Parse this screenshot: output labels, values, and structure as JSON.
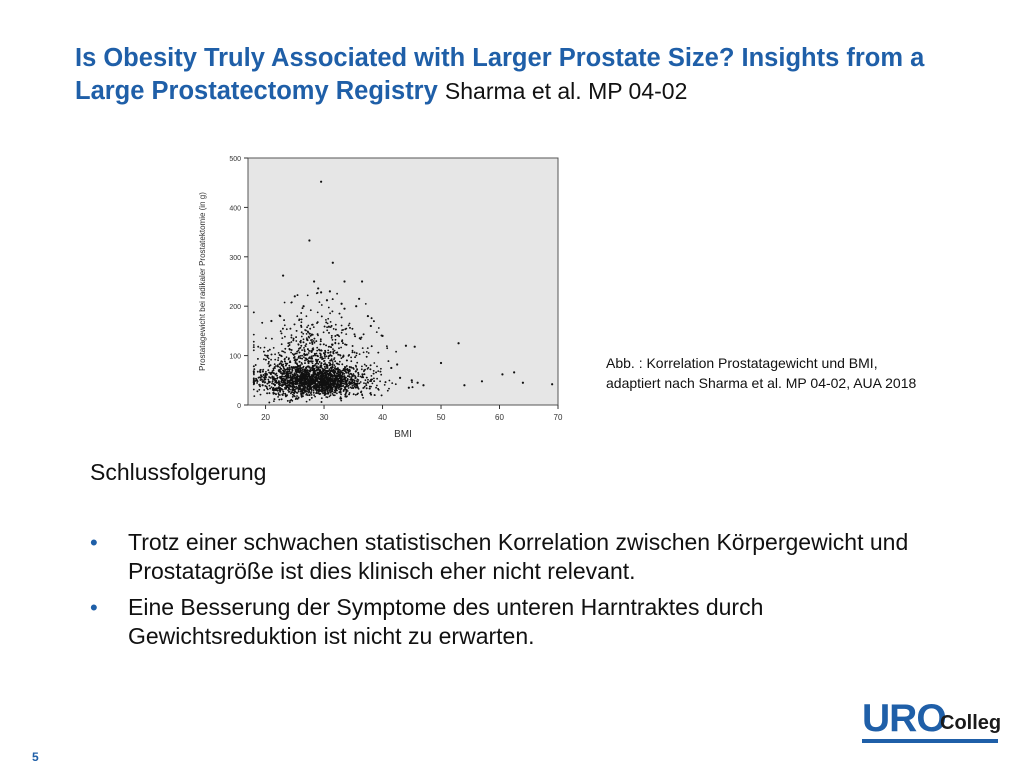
{
  "slide": {
    "title_bold": "Is Obesity Truly Associated with Larger Prostate Size? Insights from a Large Prostatectomy Registry",
    "title_author": "Sharma et al. MP 04-02",
    "caption_line1": "Abb. : Korrelation Prostatagewicht und BMI,",
    "caption_line2": "adaptiert nach Sharma et al. MP 04-02, AUA 2018",
    "conclusion_heading": "Schlussfolgerung",
    "bullets": [
      "Trotz einer schwachen statistischen Korrelation zwischen Körpergewicht und Prostatagröße ist dies klinisch eher nicht relevant.",
      "Eine Besserung der Symptome des unteren Harntraktes durch Gewichtsreduktion ist nicht zu erwarten."
    ],
    "bullet_symbol": "•",
    "logo_main": "URO",
    "logo_sub": "Colleg",
    "page_number": "5",
    "accent_color": "#1f5fa8"
  },
  "chart_data": {
    "type": "scatter",
    "title": "",
    "xlabel": "BMI",
    "ylabel": "Prostatagewicht bei radikaler Prostatektomie (in g)",
    "xlim": [
      17,
      70
    ],
    "ylim": [
      0,
      500
    ],
    "xticks": [
      20,
      30,
      40,
      50,
      60,
      70
    ],
    "yticks": [
      0,
      100,
      200,
      300,
      400,
      500
    ],
    "grid": false,
    "background": "#e6e6e6",
    "point_color": "#111111",
    "points": [
      [
        29.5,
        452
      ],
      [
        27.5,
        333
      ],
      [
        23,
        262
      ],
      [
        31.5,
        288
      ],
      [
        28.3,
        250
      ],
      [
        33.5,
        250
      ],
      [
        36.5,
        250
      ],
      [
        29,
        236
      ],
      [
        29.5,
        228
      ],
      [
        33,
        205
      ],
      [
        30.5,
        212
      ],
      [
        35.5,
        200
      ],
      [
        37.5,
        180
      ],
      [
        53,
        125
      ],
      [
        45.5,
        118
      ],
      [
        44,
        120
      ],
      [
        50,
        85
      ],
      [
        57,
        48
      ],
      [
        54,
        40
      ],
      [
        60.5,
        62
      ],
      [
        62.5,
        66
      ],
      [
        69,
        42
      ],
      [
        64,
        45
      ],
      [
        47,
        40
      ],
      [
        43,
        55
      ],
      [
        41.5,
        75
      ],
      [
        42.5,
        82
      ],
      [
        21,
        170
      ],
      [
        22.5,
        180
      ],
      [
        25,
        220
      ],
      [
        26.5,
        200
      ],
      [
        33.5,
        195
      ],
      [
        38,
        160
      ],
      [
        40,
        140
      ],
      [
        19.5,
        40
      ],
      [
        18.5,
        50
      ],
      [
        20,
        58
      ],
      [
        45,
        50
      ],
      [
        46,
        45
      ],
      [
        44.5,
        35
      ],
      [
        36,
        215
      ],
      [
        31,
        230
      ]
    ],
    "cluster": {
      "x_center": 27.5,
      "x_sd": 4.2,
      "x_min": 18,
      "x_max": 46,
      "y_center": 48,
      "y_sd": 22,
      "y_skew_tail": 60,
      "y_min": 5,
      "count": 3200
    }
  }
}
